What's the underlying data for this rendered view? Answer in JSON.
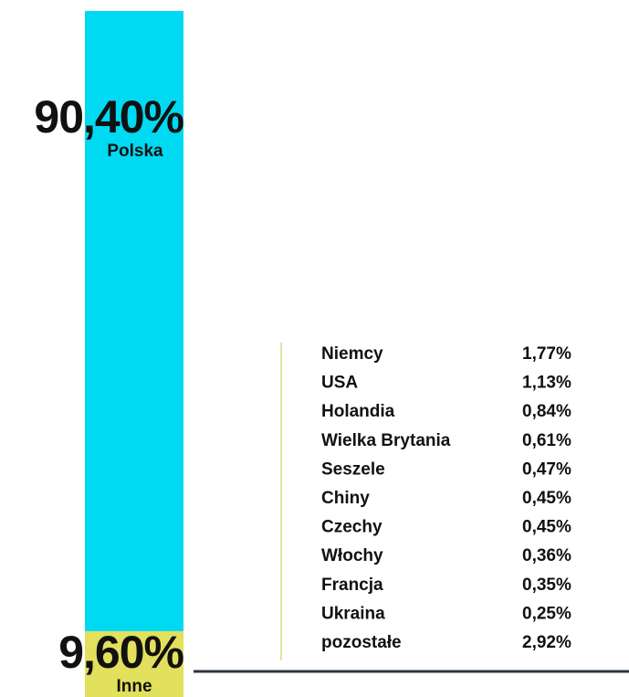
{
  "chart_data": {
    "type": "stacked-bar",
    "series": [
      {
        "name": "Polska",
        "color": "#00d9f2",
        "values": [
          90.4
        ],
        "value_labels": [
          "90,40%"
        ]
      },
      {
        "name": "Inne",
        "color": "#e2e05c",
        "values": [
          9.6
        ],
        "value_labels": [
          "9,60%"
        ]
      }
    ],
    "ylim": [
      0,
      100
    ],
    "breakdown": {
      "categories": [
        "Niemcy",
        "USA",
        "Holandia",
        "Wielka Brytania",
        "Seszele",
        "Chiny",
        "Czechy",
        "Włochy",
        "Francja",
        "Ukraina",
        "pozostałe"
      ],
      "values": [
        "1,77%",
        "1,13%",
        "0,84%",
        "0,61%",
        "0,47%",
        "0,45%",
        "0,45%",
        "0,36%",
        "0,35%",
        "0,25%",
        "2,92%"
      ]
    }
  }
}
